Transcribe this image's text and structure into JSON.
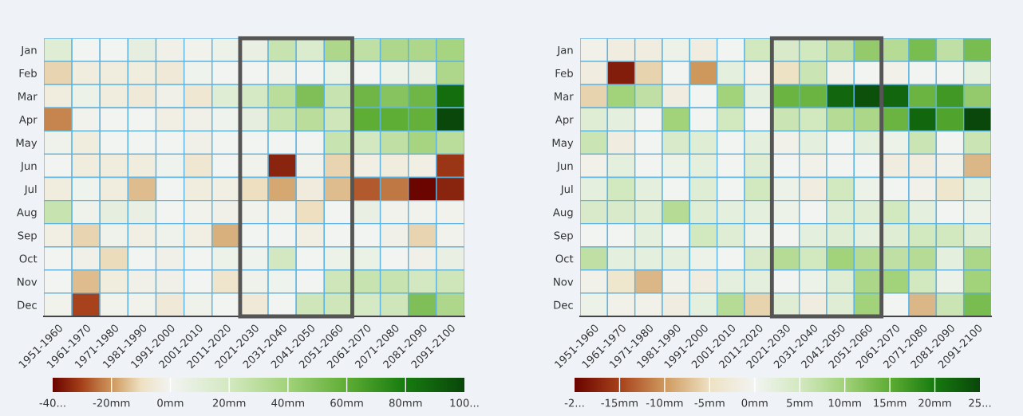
{
  "chart_data": [
    {
      "type": "heatmap",
      "categories": [
        "1951-1960",
        "1961-1970",
        "1971-1980",
        "1981-1990",
        "1991-2000",
        "2001-2010",
        "2011-2020",
        "2021-2030",
        "2031-2040",
        "2041-2050",
        "2051-2060",
        "2061-2070",
        "2071-2080",
        "2081-2090",
        "2091-2100"
      ],
      "y_categories": [
        "Jan",
        "Feb",
        "Mar",
        "Apr",
        "May",
        "Jun",
        "Jul",
        "Aug",
        "Sep",
        "Oct",
        "Nov",
        "Dec"
      ],
      "cells": [
        [
          12,
          0,
          0,
          8,
          -2,
          -1,
          4,
          6,
          25,
          15,
          35,
          28,
          35,
          35,
          38
        ],
        [
          -12,
          -4,
          -4,
          -4,
          -6,
          2,
          0,
          1,
          3,
          0,
          5,
          1,
          4,
          6,
          35
        ],
        [
          -4,
          4,
          -4,
          -6,
          -2,
          -7,
          12,
          18,
          30,
          50,
          25,
          55,
          48,
          55,
          85
        ],
        [
          -22,
          -1,
          0,
          0,
          -3,
          -2,
          2,
          8,
          25,
          30,
          22,
          60,
          60,
          58,
          100
        ],
        [
          3,
          -4,
          0,
          0,
          0,
          -2,
          0,
          1,
          0,
          1,
          25,
          20,
          28,
          38,
          30
        ],
        [
          0,
          -4,
          -4,
          -4,
          2,
          -7,
          0,
          -1,
          -35,
          -1,
          -12,
          -3,
          -4,
          -3,
          -32
        ],
        [
          -4,
          2,
          -4,
          -15,
          0,
          -4,
          -3,
          -10,
          -18,
          -5,
          -15,
          -27,
          -24,
          -40,
          -35
        ],
        [
          25,
          3,
          8,
          6,
          0,
          -1,
          -2,
          -1,
          -1,
          -10,
          0,
          6,
          -1,
          -1,
          -1
        ],
        [
          -3,
          -12,
          3,
          -3,
          3,
          -3,
          -17,
          0,
          1,
          -3,
          0,
          0,
          -2,
          -12,
          -1
        ],
        [
          0,
          -2,
          -11,
          0,
          -2,
          1,
          4,
          2,
          20,
          0,
          4,
          5,
          1,
          -2,
          6
        ],
        [
          0,
          -15,
          -4,
          -2,
          -2,
          0,
          -8,
          3,
          2,
          0,
          22,
          25,
          25,
          20,
          22
        ],
        [
          -1,
          -30,
          -1,
          -1,
          -6,
          3,
          0,
          -6,
          0,
          22,
          22,
          18,
          22,
          50,
          35
        ]
      ],
      "clim": [
        -40,
        100
      ],
      "cticks": [
        {
          "value": -40,
          "label": "-40..."
        },
        {
          "value": -20,
          "label": "-20mm"
        },
        {
          "value": 0,
          "label": "0mm"
        },
        {
          "value": 20,
          "label": "20mm"
        },
        {
          "value": 40,
          "label": "40mm"
        },
        {
          "value": 60,
          "label": "60mm"
        },
        {
          "value": 80,
          "label": "80mm"
        },
        {
          "value": 100,
          "label": "100..."
        }
      ]
    },
    {
      "type": "heatmap",
      "categories": [
        "1951-1960",
        "1961-1970",
        "1971-1980",
        "1981-1990",
        "1991-2000",
        "2001-2010",
        "2011-2020",
        "2021-2030",
        "2031-2040",
        "2041-2050",
        "2051-2060",
        "2061-2070",
        "2071-2080",
        "2081-2090",
        "2091-2100"
      ],
      "y_categories": [
        "Jan",
        "Feb",
        "Mar",
        "Apr",
        "May",
        "Jun",
        "Jul",
        "Aug",
        "Sep",
        "Oct",
        "Nov",
        "Dec"
      ],
      "cells": [
        [
          -1,
          -2,
          -2,
          1,
          -2,
          0,
          5,
          4,
          5,
          7,
          11,
          8,
          13,
          7,
          13
        ],
        [
          -2,
          -18,
          -6,
          0,
          -10,
          2,
          -1,
          -5,
          6,
          -1,
          0,
          -1,
          0,
          0,
          2
        ],
        [
          -6,
          10,
          7,
          -2,
          0,
          10,
          2,
          14,
          14,
          22,
          24,
          22,
          14,
          17,
          11
        ],
        [
          3,
          2,
          0,
          10,
          0,
          5,
          0,
          6,
          5,
          8,
          9,
          14,
          22,
          16,
          25
        ],
        [
          6,
          -2,
          0,
          4,
          3,
          0,
          2,
          -1,
          2,
          0,
          2,
          1,
          6,
          0,
          6
        ],
        [
          -1,
          2,
          0,
          1,
          2,
          0,
          3,
          0,
          -1,
          0,
          0,
          -2,
          -2,
          -1,
          -8
        ],
        [
          2,
          5,
          2,
          0,
          3,
          0,
          5,
          1,
          -2,
          5,
          1,
          0,
          -1,
          -4,
          2
        ],
        [
          4,
          4,
          3,
          8,
          3,
          2,
          2,
          1,
          0,
          3,
          3,
          5,
          2,
          0,
          1
        ],
        [
          0,
          0,
          2,
          0,
          5,
          3,
          1,
          0,
          2,
          3,
          2,
          3,
          5,
          5,
          3
        ],
        [
          7,
          2,
          2,
          2,
          1,
          0,
          4,
          8,
          5,
          10,
          8,
          7,
          8,
          2,
          9
        ],
        [
          -1,
          -4,
          -8,
          -1,
          -2,
          2,
          2,
          0,
          1,
          3,
          9,
          10,
          5,
          1,
          10
        ],
        [
          1,
          -1,
          -1,
          -2,
          2,
          8,
          -6,
          3,
          -2,
          3,
          10,
          0,
          -8,
          6,
          13
        ]
      ],
      "clim": [
        -20,
        25
      ],
      "cticks": [
        {
          "value": -20,
          "label": "-2..."
        },
        {
          "value": -15,
          "label": "-15mm"
        },
        {
          "value": -10,
          "label": "-10mm"
        },
        {
          "value": -5,
          "label": "-5mm"
        },
        {
          "value": 0,
          "label": "0mm"
        },
        {
          "value": 5,
          "label": "5mm"
        },
        {
          "value": 10,
          "label": "10mm"
        },
        {
          "value": 15,
          "label": "15mm"
        },
        {
          "value": 20,
          "label": "20mm"
        },
        {
          "value": 25,
          "label": "25..."
        }
      ]
    }
  ]
}
